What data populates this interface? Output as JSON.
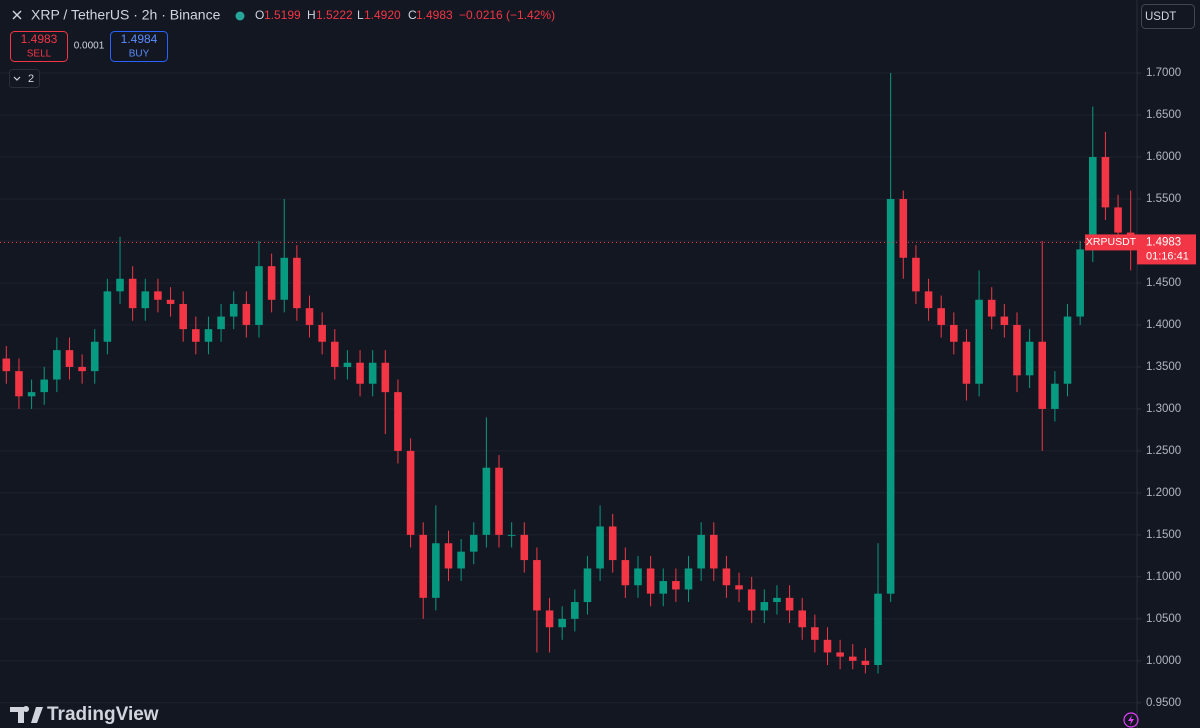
{
  "header": {
    "symbol": "XRP / TetherUS · 2h · Binance",
    "ohlc": [
      {
        "key": "O",
        "val": "1.5199"
      },
      {
        "key": "H",
        "val": "1.5222"
      },
      {
        "key": "L",
        "val": "1.4920"
      },
      {
        "key": "C",
        "val": "1.4983"
      }
    ],
    "change": "−0.0216 (−1.42%)"
  },
  "trade": {
    "sell_price": "1.4983",
    "sell": "SELL",
    "spread": "0.0001",
    "buy_price": "1.4984",
    "buy": "BUY"
  },
  "indicators": "2",
  "currency": "USDT",
  "logo": "TradingView",
  "chart_data": {
    "type": "candlestick",
    "up_color": "#089981",
    "down_color": "#f23645",
    "grid": true,
    "ylim": [
      0.92,
      1.787
    ],
    "yticks": [
      {
        "value": 0.95,
        "label": "0.9500"
      },
      {
        "value": 1,
        "label": "1.0000"
      },
      {
        "value": 1.05,
        "label": "1.0500"
      },
      {
        "value": 1.1,
        "label": "1.1000"
      },
      {
        "value": 1.15,
        "label": "1.1500"
      },
      {
        "value": 1.2,
        "label": "1.2000"
      },
      {
        "value": 1.25,
        "label": "1.2500"
      },
      {
        "value": 1.3,
        "label": "1.3000"
      },
      {
        "value": 1.35,
        "label": "1.3500"
      },
      {
        "value": 1.4,
        "label": "1.4000"
      },
      {
        "value": 1.45,
        "label": "1.4500"
      },
      {
        "value": 1.5,
        "label": "1.5000"
      },
      {
        "value": 1.55,
        "label": "1.5500"
      },
      {
        "value": 1.6,
        "label": "1.6000"
      },
      {
        "value": 1.65,
        "label": "1.6500"
      },
      {
        "value": 1.7,
        "label": "1.7000"
      }
    ],
    "symbol_label": "XRPUSDT",
    "last_price": 1.4983,
    "countdown": "01:16:41",
    "open": [
      1.36,
      1.345,
      1.315,
      1.32,
      1.335,
      1.37,
      1.35,
      1.345,
      1.38,
      1.44,
      1.455,
      1.42,
      1.44,
      1.43,
      1.425,
      1.395,
      1.38,
      1.395,
      1.41,
      1.425,
      1.4,
      1.47,
      1.43,
      1.48,
      1.42,
      1.4,
      1.38,
      1.35,
      1.355,
      1.33,
      1.355,
      1.32,
      1.25,
      1.15,
      1.075,
      1.14,
      1.11,
      1.13,
      1.15,
      1.23,
      1.15,
      1.15,
      1.12,
      1.06,
      1.04,
      1.05,
      1.07,
      1.11,
      1.16,
      1.12,
      1.09,
      1.11,
      1.08,
      1.095,
      1.085,
      1.11,
      1.15,
      1.11,
      1.09,
      1.085,
      1.06,
      1.07,
      1.075,
      1.06,
      1.04,
      1.025,
      1.01,
      1.005,
      1.0,
      0.995,
      1.08,
      1.55,
      1.48,
      1.44,
      1.42,
      1.4,
      1.38,
      1.33,
      1.43,
      1.41,
      1.4,
      1.34,
      1.38,
      1.3,
      1.33,
      1.41,
      1.49,
      1.6,
      1.54,
      1.51
    ],
    "high": [
      1.375,
      1.36,
      1.335,
      1.35,
      1.385,
      1.385,
      1.365,
      1.395,
      1.455,
      1.505,
      1.47,
      1.455,
      1.455,
      1.445,
      1.44,
      1.41,
      1.41,
      1.425,
      1.44,
      1.44,
      1.5,
      1.485,
      1.55,
      1.495,
      1.435,
      1.415,
      1.395,
      1.37,
      1.37,
      1.37,
      1.37,
      1.335,
      1.265,
      1.165,
      1.185,
      1.155,
      1.145,
      1.165,
      1.29,
      1.245,
      1.165,
      1.165,
      1.135,
      1.075,
      1.065,
      1.085,
      1.125,
      1.185,
      1.175,
      1.135,
      1.125,
      1.125,
      1.11,
      1.11,
      1.125,
      1.165,
      1.165,
      1.125,
      1.105,
      1.1,
      1.085,
      1.09,
      1.09,
      1.075,
      1.055,
      1.04,
      1.025,
      1.02,
      1.015,
      1.14,
      1.7,
      1.56,
      1.495,
      1.455,
      1.435,
      1.415,
      1.395,
      1.465,
      1.445,
      1.425,
      1.415,
      1.395,
      1.5,
      1.345,
      1.425,
      1.5,
      1.66,
      1.63,
      1.555,
      1.56
    ],
    "low": [
      1.33,
      1.3,
      1.3,
      1.305,
      1.32,
      1.335,
      1.33,
      1.33,
      1.365,
      1.425,
      1.405,
      1.405,
      1.415,
      1.41,
      1.38,
      1.365,
      1.365,
      1.38,
      1.395,
      1.385,
      1.385,
      1.415,
      1.415,
      1.405,
      1.385,
      1.365,
      1.335,
      1.335,
      1.315,
      1.315,
      1.27,
      1.235,
      1.135,
      1.05,
      1.06,
      1.095,
      1.095,
      1.115,
      1.135,
      1.135,
      1.135,
      1.105,
      1.01,
      1.01,
      1.025,
      1.035,
      1.055,
      1.095,
      1.105,
      1.075,
      1.075,
      1.065,
      1.065,
      1.07,
      1.07,
      1.095,
      1.095,
      1.075,
      1.07,
      1.045,
      1.045,
      1.055,
      1.045,
      1.025,
      1.01,
      0.995,
      0.99,
      0.99,
      0.985,
      0.985,
      1.07,
      1.455,
      1.425,
      1.405,
      1.385,
      1.365,
      1.31,
      1.315,
      1.395,
      1.385,
      1.32,
      1.325,
      1.25,
      1.285,
      1.315,
      1.4,
      1.475,
      1.525,
      1.495,
      1.465
    ],
    "close": [
      1.345,
      1.315,
      1.32,
      1.335,
      1.37,
      1.35,
      1.345,
      1.38,
      1.44,
      1.455,
      1.42,
      1.44,
      1.43,
      1.425,
      1.395,
      1.38,
      1.395,
      1.41,
      1.425,
      1.4,
      1.47,
      1.43,
      1.48,
      1.42,
      1.4,
      1.38,
      1.35,
      1.355,
      1.33,
      1.355,
      1.32,
      1.25,
      1.15,
      1.075,
      1.14,
      1.11,
      1.13,
      1.15,
      1.23,
      1.15,
      1.15,
      1.12,
      1.06,
      1.04,
      1.05,
      1.07,
      1.11,
      1.16,
      1.12,
      1.09,
      1.11,
      1.08,
      1.095,
      1.085,
      1.11,
      1.15,
      1.11,
      1.09,
      1.085,
      1.06,
      1.07,
      1.075,
      1.06,
      1.04,
      1.025,
      1.01,
      1.005,
      1.0,
      0.995,
      1.08,
      1.55,
      1.48,
      1.44,
      1.42,
      1.4,
      1.38,
      1.33,
      1.43,
      1.41,
      1.4,
      1.34,
      1.38,
      1.3,
      1.33,
      1.41,
      1.49,
      1.6,
      1.54,
      1.51,
      1.4983
    ]
  }
}
